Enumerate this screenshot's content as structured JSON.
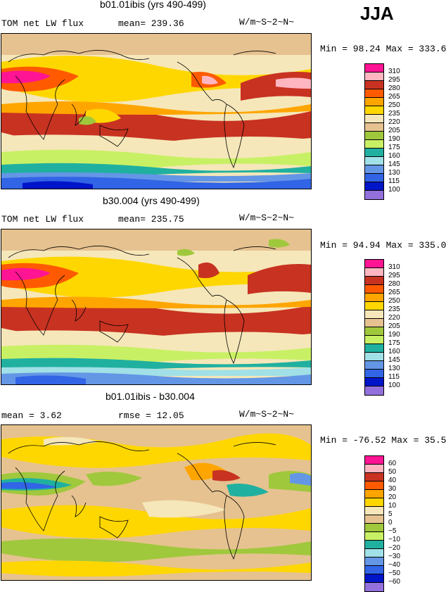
{
  "season": "JJA",
  "panels": [
    {
      "title": "b01.01ibis (yrs 490-499)",
      "left_label": "TOM net LW flux",
      "mid_label": "mean= 239.36",
      "units": "W/m~S~2~N~",
      "minmax": "Min =  98.24 Max = 333.64",
      "levels": [
        "310",
        "295",
        "280",
        "265",
        "250",
        "235",
        "220",
        "205",
        "190",
        "175",
        "160",
        "145",
        "130",
        "115",
        "100"
      ],
      "colors": [
        "#ff1493",
        "#ffb6c1",
        "#c83221",
        "#ff5a00",
        "#ffa500",
        "#ffd700",
        "#f5e7b9",
        "#e6c290",
        "#a0c83c",
        "#c8f064",
        "#20b0a0",
        "#a0e0e6",
        "#6496e6",
        "#3264e6",
        "#0014c8",
        "#9370db"
      ]
    },
    {
      "title": "b30.004 (yrs 490-499)",
      "left_label": "TOM net LW flux",
      "mid_label": "mean= 235.75",
      "units": "W/m~S~2~N~",
      "minmax": "Min =  94.94 Max = 335.00",
      "levels": [
        "310",
        "295",
        "280",
        "265",
        "250",
        "235",
        "220",
        "205",
        "190",
        "175",
        "160",
        "145",
        "130",
        "115",
        "100"
      ],
      "colors": [
        "#ff1493",
        "#ffb6c1",
        "#c83221",
        "#ff5a00",
        "#ffa500",
        "#ffd700",
        "#f5e7b9",
        "#e6c290",
        "#a0c83c",
        "#c8f064",
        "#20b0a0",
        "#a0e0e6",
        "#6496e6",
        "#3264e6",
        "#0014c8",
        "#9370db"
      ]
    },
    {
      "title": "b01.01ibis - b30.004",
      "left_label": "mean =    3.62",
      "mid_label": "rmse =   12.05",
      "units": "W/m~S~2~N~",
      "minmax": "Min = -76.52 Max =  35.51",
      "levels": [
        "60",
        "50",
        "40",
        "30",
        "20",
        "10",
        "5",
        "0",
        "−5",
        "−10",
        "−20",
        "−30",
        "−40",
        "−50",
        "−60"
      ],
      "colors": [
        "#ff1493",
        "#ffb6c1",
        "#c83221",
        "#ff5a00",
        "#ffa500",
        "#ffd700",
        "#f5e7b9",
        "#e6c290",
        "#a0c83c",
        "#c8f064",
        "#20b0a0",
        "#a0e0e6",
        "#6496e6",
        "#3264e6",
        "#0014c8",
        "#9370db"
      ]
    }
  ]
}
